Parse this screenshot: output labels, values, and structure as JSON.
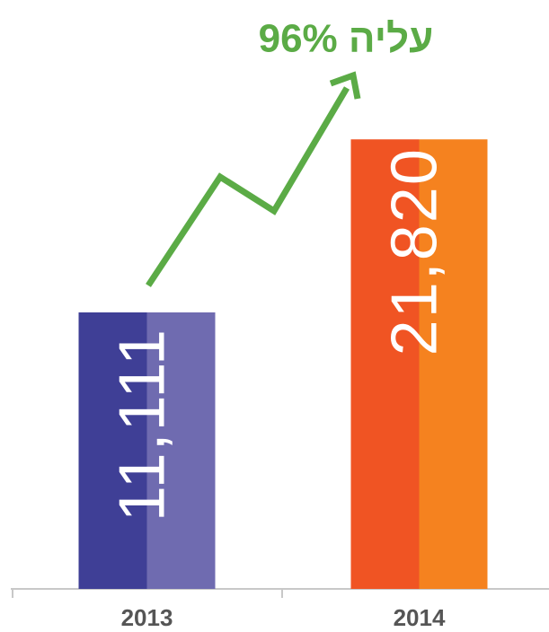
{
  "chart_data": {
    "type": "bar",
    "annotation": "עליה 96%",
    "categories": [
      "2013",
      "2014"
    ],
    "values": [
      11111,
      21820
    ],
    "value_labels": [
      "11,111",
      "21,820"
    ],
    "colors": [
      [
        "#3f3f96",
        "#6f6bb0"
      ],
      [
        "#f05423",
        "#f5821f"
      ]
    ],
    "annotation_color": "#5bab46",
    "ylim": [
      -6000,
      24000
    ]
  }
}
